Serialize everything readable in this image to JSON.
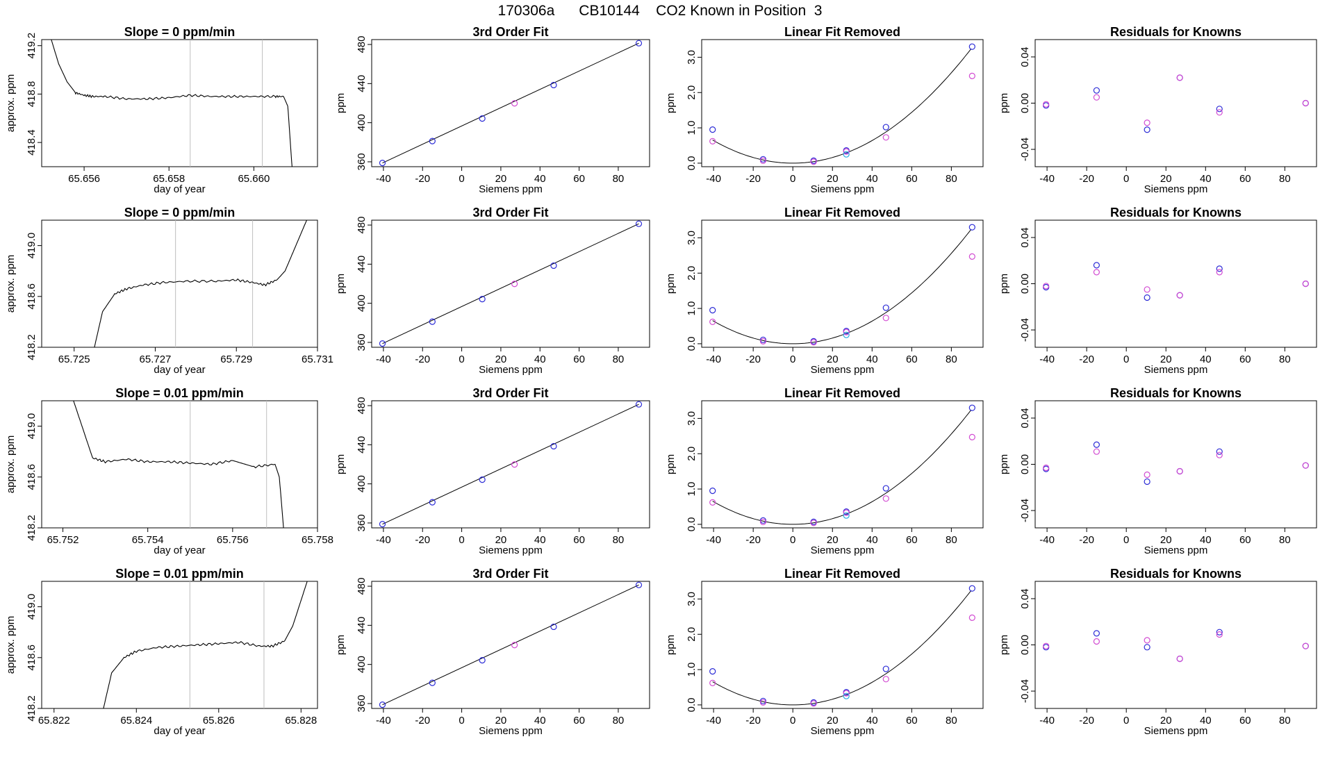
{
  "figure": {
    "title": "170306a      CB10144    CO2 Known in Position  3"
  },
  "colors": {
    "trace": "#000000",
    "vline": "#bebebe",
    "fit_line": "#000000",
    "point_blue": "#2b2bd6",
    "point_magenta": "#d24bd2",
    "point_cyan": "#2aa8e0",
    "point_purple": "#7a3bd0"
  },
  "chart_data": [
    {
      "type": "line",
      "panel": "timeseries",
      "row": 0,
      "title": "Slope =  0  ppm/min",
      "xlabel": "day of year",
      "ylabel": "approx. ppm",
      "xlim": [
        65.655,
        65.6615
      ],
      "ylim": [
        418.2,
        419.25
      ],
      "xticks": [
        65.656,
        65.658,
        65.66
      ],
      "xtick_labels": [
        "65.656",
        "65.658",
        "65.660"
      ],
      "yticks": [
        418.4,
        418.8,
        419.2
      ],
      "ytick_labels": [
        "418.4",
        "418.8",
        "419.2"
      ],
      "vlines": [
        65.6585,
        65.6602
      ],
      "x": [
        65.6552,
        65.6554,
        65.6556,
        65.6558,
        65.656,
        65.6562,
        65.6565,
        65.657,
        65.6575,
        65.658,
        65.6585,
        65.659,
        65.6595,
        65.66,
        65.6605,
        65.6607,
        65.6608,
        65.6609
      ],
      "y": [
        419.28,
        419.05,
        418.9,
        418.81,
        418.79,
        418.78,
        418.78,
        418.76,
        418.76,
        418.77,
        418.79,
        418.78,
        418.78,
        418.78,
        418.78,
        418.78,
        418.7,
        418.2
      ]
    },
    {
      "type": "scatter",
      "panel": "fit",
      "row": 0,
      "title": "3rd Order Fit",
      "xlabel": "Siemens ppm",
      "ylabel": "ppm",
      "xlim": [
        -46,
        96
      ],
      "ylim": [
        355,
        485
      ],
      "xticks": [
        -40,
        -20,
        0,
        20,
        40,
        60,
        80
      ],
      "yticks": [
        360,
        400,
        440,
        480
      ],
      "x": [
        -40.5,
        -15,
        10.5,
        27,
        47,
        90.5
      ],
      "y": [
        358.8,
        381.2,
        404.3,
        419.8,
        438.5,
        481.3
      ],
      "point_colors": [
        "blue",
        "blue",
        "blue",
        "magenta",
        "blue",
        "blue"
      ]
    },
    {
      "type": "scatter",
      "panel": "linear_removed",
      "row": 0,
      "title": "Linear Fit Removed",
      "xlabel": "Siemens ppm",
      "ylabel": "ppm",
      "xlim": [
        -46,
        96
      ],
      "ylim": [
        -0.1,
        3.5
      ],
      "xticks": [
        -40,
        -20,
        0,
        20,
        40,
        60,
        80
      ],
      "yticks": [
        0.0,
        1.0,
        2.0,
        3.0
      ],
      "ytick_labels": [
        "0.0",
        "1.0",
        "2.0",
        "3.0"
      ],
      "curve_coeff": 0.0004,
      "series": [
        {
          "name": "",
          "color": "blue",
          "x": [
            -40.5,
            -15,
            10.5,
            27,
            47,
            90.5
          ],
          "y": [
            0.95,
            0.11,
            0.07,
            0.36,
            1.02,
            3.3
          ]
        },
        {
          "name": "",
          "color": "magenta",
          "x": [
            -40.5,
            -15,
            10.5,
            27,
            47,
            90.5
          ],
          "y": [
            0.62,
            0.07,
            0.04,
            0.33,
            0.73,
            2.47
          ]
        },
        {
          "name": "",
          "color": "cyan",
          "x": [
            27
          ],
          "y": [
            0.25
          ]
        }
      ]
    },
    {
      "type": "scatter",
      "panel": "residuals",
      "row": 0,
      "title": "Residuals for Knowns",
      "xlabel": "Siemens ppm",
      "ylabel": "ppm",
      "xlim": [
        -46,
        96
      ],
      "ylim": [
        -0.055,
        0.055
      ],
      "xticks": [
        -40,
        -20,
        0,
        20,
        40,
        60,
        80
      ],
      "yticks": [
        -0.04,
        0.0,
        0.04
      ],
      "ytick_labels": [
        "-0.04",
        "0.00",
        "0.04"
      ],
      "series": [
        {
          "name": "",
          "color": "blue",
          "x": [
            -40.5,
            -15,
            10.5,
            27,
            47,
            90.5
          ],
          "y": [
            -0.002,
            0.011,
            -0.023,
            0.022,
            -0.005,
            0.0
          ]
        },
        {
          "name": "",
          "color": "magenta",
          "x": [
            -40.5,
            -15,
            10.5,
            27,
            47,
            90.5
          ],
          "y": [
            -0.001,
            0.005,
            -0.017,
            0.022,
            -0.008,
            0.0
          ]
        }
      ]
    },
    {
      "type": "line",
      "panel": "timeseries",
      "row": 1,
      "title": "Slope =  0  ppm/min",
      "xlabel": "day of year",
      "ylabel": "approx. ppm",
      "xlim": [
        65.7242,
        65.731
      ],
      "ylim": [
        418.2,
        419.2
      ],
      "xticks": [
        65.725,
        65.727,
        65.729,
        65.731
      ],
      "xtick_labels": [
        "65.725",
        "65.727",
        "65.729",
        "65.731"
      ],
      "yticks": [
        418.2,
        418.6,
        419.0
      ],
      "ytick_labels": [
        "418.2",
        "418.6",
        "419.0"
      ],
      "vlines": [
        65.7275,
        65.7294
      ],
      "x": [
        65.7255,
        65.7257,
        65.726,
        65.7263,
        65.7267,
        65.7272,
        65.7278,
        65.7285,
        65.729,
        65.7294,
        65.7297,
        65.73,
        65.7302,
        65.7304,
        65.7306,
        65.7308
      ],
      "y": [
        418.2,
        418.48,
        418.62,
        418.66,
        418.69,
        418.71,
        418.72,
        418.72,
        418.73,
        418.71,
        418.69,
        418.73,
        418.8,
        418.95,
        419.1,
        419.25
      ]
    },
    {
      "type": "scatter",
      "panel": "fit",
      "row": 1,
      "title": "3rd Order Fit",
      "xlabel": "Siemens ppm",
      "ylabel": "ppm",
      "xlim": [
        -46,
        96
      ],
      "ylim": [
        355,
        485
      ],
      "xticks": [
        -40,
        -20,
        0,
        20,
        40,
        60,
        80
      ],
      "yticks": [
        360,
        400,
        440,
        480
      ],
      "x": [
        -40.5,
        -15,
        10.5,
        27,
        47,
        90.5
      ],
      "y": [
        358.8,
        381.2,
        404.3,
        419.8,
        438.5,
        481.3
      ],
      "point_colors": [
        "blue",
        "blue",
        "blue",
        "magenta",
        "blue",
        "blue"
      ]
    },
    {
      "type": "scatter",
      "panel": "linear_removed",
      "row": 1,
      "title": "Linear Fit Removed",
      "xlabel": "Siemens ppm",
      "ylabel": "ppm",
      "xlim": [
        -46,
        96
      ],
      "ylim": [
        -0.1,
        3.5
      ],
      "xticks": [
        -40,
        -20,
        0,
        20,
        40,
        60,
        80
      ],
      "yticks": [
        0.0,
        1.0,
        2.0,
        3.0
      ],
      "ytick_labels": [
        "0.0",
        "1.0",
        "2.0",
        "3.0"
      ],
      "curve_coeff": 0.0004,
      "series": [
        {
          "name": "",
          "color": "blue",
          "x": [
            -40.5,
            -15,
            10.5,
            27,
            47,
            90.5
          ],
          "y": [
            0.95,
            0.11,
            0.07,
            0.36,
            1.02,
            3.3
          ]
        },
        {
          "name": "",
          "color": "magenta",
          "x": [
            -40.5,
            -15,
            10.5,
            27,
            47,
            90.5
          ],
          "y": [
            0.62,
            0.07,
            0.04,
            0.33,
            0.73,
            2.47
          ]
        },
        {
          "name": "",
          "color": "cyan",
          "x": [
            27
          ],
          "y": [
            0.25
          ]
        }
      ]
    },
    {
      "type": "scatter",
      "panel": "residuals",
      "row": 1,
      "title": "Residuals for Knowns",
      "xlabel": "Siemens ppm",
      "ylabel": "ppm",
      "xlim": [
        -46,
        96
      ],
      "ylim": [
        -0.055,
        0.055
      ],
      "xticks": [
        -40,
        -20,
        0,
        20,
        40,
        60,
        80
      ],
      "yticks": [
        -0.04,
        0.0,
        0.04
      ],
      "ytick_labels": [
        "-0.04",
        "0.00",
        "0.04"
      ],
      "series": [
        {
          "name": "",
          "color": "blue",
          "x": [
            -40.5,
            -15,
            10.5,
            27,
            47,
            90.5
          ],
          "y": [
            -0.003,
            0.016,
            -0.012,
            -0.01,
            0.013,
            0.0
          ]
        },
        {
          "name": "",
          "color": "magenta",
          "x": [
            -40.5,
            -15,
            10.5,
            27,
            47,
            90.5
          ],
          "y": [
            -0.002,
            0.01,
            -0.005,
            -0.01,
            0.01,
            0.0
          ]
        }
      ]
    },
    {
      "type": "line",
      "panel": "timeseries",
      "row": 2,
      "title": "Slope =  0.01  ppm/min",
      "xlabel": "day of year",
      "ylabel": "approx. ppm",
      "xlim": [
        65.7515,
        65.758
      ],
      "ylim": [
        418.2,
        419.2
      ],
      "xticks": [
        65.752,
        65.754,
        65.756,
        65.758
      ],
      "xtick_labels": [
        "65.752",
        "65.754",
        "65.756",
        "65.758"
      ],
      "yticks": [
        418.2,
        418.6,
        419.0
      ],
      "ytick_labels": [
        "418.2",
        "418.6",
        "419.0"
      ],
      "vlines": [
        65.755,
        65.7568
      ],
      "x": [
        65.7522,
        65.7525,
        65.7527,
        65.753,
        65.7535,
        65.754,
        65.7545,
        65.755,
        65.7555,
        65.756,
        65.7565,
        65.757,
        65.7571,
        65.7572
      ],
      "y": [
        419.25,
        418.95,
        418.75,
        418.72,
        418.74,
        418.72,
        418.72,
        418.71,
        418.7,
        418.73,
        418.68,
        418.7,
        418.6,
        418.2
      ]
    },
    {
      "type": "scatter",
      "panel": "fit",
      "row": 2,
      "title": "3rd Order Fit",
      "xlabel": "Siemens ppm",
      "ylabel": "ppm",
      "xlim": [
        -46,
        96
      ],
      "ylim": [
        355,
        485
      ],
      "xticks": [
        -40,
        -20,
        0,
        20,
        40,
        60,
        80
      ],
      "yticks": [
        360,
        400,
        440,
        480
      ],
      "x": [
        -40.5,
        -15,
        10.5,
        27,
        47,
        90.5
      ],
      "y": [
        358.8,
        381.2,
        404.3,
        419.8,
        438.5,
        481.3
      ],
      "point_colors": [
        "blue",
        "blue",
        "blue",
        "magenta",
        "blue",
        "blue"
      ]
    },
    {
      "type": "scatter",
      "panel": "linear_removed",
      "row": 2,
      "title": "Linear Fit Removed",
      "xlabel": "Siemens ppm",
      "ylabel": "ppm",
      "xlim": [
        -46,
        96
      ],
      "ylim": [
        -0.1,
        3.5
      ],
      "xticks": [
        -40,
        -20,
        0,
        20,
        40,
        60,
        80
      ],
      "yticks": [
        0.0,
        1.0,
        2.0,
        3.0
      ],
      "ytick_labels": [
        "0.0",
        "1.0",
        "2.0",
        "3.0"
      ],
      "curve_coeff": 0.0004,
      "series": [
        {
          "name": "",
          "color": "blue",
          "x": [
            -40.5,
            -15,
            10.5,
            27,
            47,
            90.5
          ],
          "y": [
            0.95,
            0.11,
            0.07,
            0.36,
            1.02,
            3.3
          ]
        },
        {
          "name": "",
          "color": "magenta",
          "x": [
            -40.5,
            -15,
            10.5,
            27,
            47,
            90.5
          ],
          "y": [
            0.62,
            0.07,
            0.04,
            0.33,
            0.73,
            2.47
          ]
        },
        {
          "name": "",
          "color": "cyan",
          "x": [
            27
          ],
          "y": [
            0.25
          ]
        }
      ]
    },
    {
      "type": "scatter",
      "panel": "residuals",
      "row": 2,
      "title": "Residuals for Knowns",
      "xlabel": "Siemens ppm",
      "ylabel": "ppm",
      "xlim": [
        -46,
        96
      ],
      "ylim": [
        -0.055,
        0.055
      ],
      "xticks": [
        -40,
        -20,
        0,
        20,
        40,
        60,
        80
      ],
      "yticks": [
        -0.04,
        0.0,
        0.04
      ],
      "ytick_labels": [
        "-0.04",
        "0.00",
        "0.04"
      ],
      "series": [
        {
          "name": "",
          "color": "blue",
          "x": [
            -40.5,
            -15,
            10.5,
            27,
            47,
            90.5
          ],
          "y": [
            -0.004,
            0.017,
            -0.015,
            -0.006,
            0.011,
            -0.001
          ]
        },
        {
          "name": "",
          "color": "magenta",
          "x": [
            -40.5,
            -15,
            10.5,
            27,
            47,
            90.5
          ],
          "y": [
            -0.003,
            0.011,
            -0.009,
            -0.006,
            0.008,
            -0.001
          ]
        }
      ]
    },
    {
      "type": "line",
      "panel": "timeseries",
      "row": 3,
      "title": "Slope =  0.01  ppm/min",
      "xlabel": "day of year",
      "ylabel": "approx. ppm",
      "xlim": [
        65.8217,
        65.8284
      ],
      "ylim": [
        418.2,
        419.2
      ],
      "xticks": [
        65.822,
        65.824,
        65.826,
        65.828
      ],
      "xtick_labels": [
        "65.822",
        "65.824",
        "65.826",
        "65.828"
      ],
      "yticks": [
        418.2,
        418.6,
        419.0
      ],
      "ytick_labels": [
        "418.2",
        "418.6",
        "419.0"
      ],
      "vlines": [
        65.8253,
        65.8271
      ],
      "x": [
        65.8232,
        65.8234,
        65.8237,
        65.824,
        65.8245,
        65.825,
        65.8255,
        65.826,
        65.8265,
        65.827,
        65.8273,
        65.8276,
        65.8278,
        65.828,
        65.8282
      ],
      "y": [
        418.2,
        418.48,
        418.6,
        418.65,
        418.68,
        418.69,
        418.7,
        418.71,
        418.72,
        418.69,
        418.69,
        418.73,
        418.85,
        419.05,
        419.25
      ]
    },
    {
      "type": "scatter",
      "panel": "fit",
      "row": 3,
      "title": "3rd Order Fit",
      "xlabel": "Siemens ppm",
      "ylabel": "ppm",
      "xlim": [
        -46,
        96
      ],
      "ylim": [
        355,
        485
      ],
      "xticks": [
        -40,
        -20,
        0,
        20,
        40,
        60,
        80
      ],
      "yticks": [
        360,
        400,
        440,
        480
      ],
      "x": [
        -40.5,
        -15,
        10.5,
        27,
        47,
        90.5
      ],
      "y": [
        358.8,
        381.2,
        404.3,
        419.8,
        438.5,
        481.3
      ],
      "point_colors": [
        "blue",
        "blue",
        "blue",
        "magenta",
        "blue",
        "blue"
      ]
    },
    {
      "type": "scatter",
      "panel": "linear_removed",
      "row": 3,
      "title": "Linear Fit Removed",
      "xlabel": "Siemens ppm",
      "ylabel": "ppm",
      "xlim": [
        -46,
        96
      ],
      "ylim": [
        -0.1,
        3.5
      ],
      "xticks": [
        -40,
        -20,
        0,
        20,
        40,
        60,
        80
      ],
      "yticks": [
        0.0,
        1.0,
        2.0,
        3.0
      ],
      "ytick_labels": [
        "0.0",
        "1.0",
        "2.0",
        "3.0"
      ],
      "curve_coeff": 0.0004,
      "series": [
        {
          "name": "",
          "color": "blue",
          "x": [
            -40.5,
            -15,
            10.5,
            27,
            47,
            90.5
          ],
          "y": [
            0.95,
            0.11,
            0.07,
            0.36,
            1.02,
            3.3
          ]
        },
        {
          "name": "",
          "color": "magenta",
          "x": [
            -40.5,
            -15,
            10.5,
            27,
            47,
            90.5
          ],
          "y": [
            0.62,
            0.07,
            0.04,
            0.33,
            0.73,
            2.47
          ]
        },
        {
          "name": "",
          "color": "cyan",
          "x": [
            27
          ],
          "y": [
            0.25
          ]
        }
      ]
    },
    {
      "type": "scatter",
      "panel": "residuals",
      "row": 3,
      "title": "Residuals for Knowns",
      "xlabel": "Siemens ppm",
      "ylabel": "ppm",
      "xlim": [
        -46,
        96
      ],
      "ylim": [
        -0.055,
        0.055
      ],
      "xticks": [
        -40,
        -20,
        0,
        20,
        40,
        60,
        80
      ],
      "yticks": [
        -0.04,
        0.0,
        0.04
      ],
      "ytick_labels": [
        "-0.04",
        "0.00",
        "0.04"
      ],
      "series": [
        {
          "name": "",
          "color": "blue",
          "x": [
            -40.5,
            -15,
            10.5,
            27,
            47,
            90.5
          ],
          "y": [
            -0.002,
            0.01,
            -0.002,
            -0.012,
            0.011,
            -0.001
          ]
        },
        {
          "name": "",
          "color": "magenta",
          "x": [
            -40.5,
            -15,
            10.5,
            27,
            47,
            90.5
          ],
          "y": [
            -0.001,
            0.003,
            0.004,
            -0.012,
            0.009,
            -0.001
          ]
        }
      ]
    }
  ]
}
